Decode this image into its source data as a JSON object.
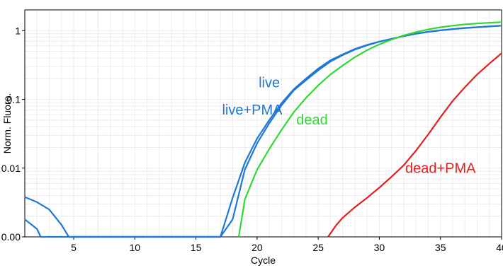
{
  "chart_data": {
    "type": "line",
    "title": "",
    "xlabel": "Cycle",
    "ylabel": "Norm. Fluoro.",
    "xlim": [
      1,
      40
    ],
    "ylim": [
      0.001,
      2
    ],
    "yscale": "log",
    "grid": true,
    "x_ticks": [
      5,
      10,
      15,
      20,
      25,
      30,
      35,
      40
    ],
    "y_ticks": [
      {
        "value": 0.001,
        "label": "0.00"
      },
      {
        "value": 0.01,
        "label": "0.01"
      },
      {
        "value": 0.1,
        "label": "0.1"
      },
      {
        "value": 1,
        "label": "1"
      }
    ],
    "series": [
      {
        "name": "live",
        "color": "#1f78d1",
        "points": [
          [
            1,
            0.0018
          ],
          [
            2,
            0.0013
          ],
          [
            2.3,
            0.001
          ],
          [
            17,
            0.001
          ],
          [
            18,
            0.0037
          ],
          [
            19,
            0.012
          ],
          [
            20,
            0.027
          ],
          [
            21,
            0.05
          ],
          [
            22,
            0.088
          ],
          [
            23,
            0.14
          ],
          [
            24,
            0.2
          ],
          [
            25,
            0.28
          ],
          [
            26,
            0.37
          ],
          [
            27,
            0.45
          ],
          [
            28,
            0.54
          ],
          [
            29,
            0.62
          ],
          [
            30,
            0.69
          ],
          [
            31,
            0.76
          ],
          [
            32,
            0.83
          ],
          [
            33,
            0.9
          ],
          [
            34,
            0.96
          ],
          [
            35,
            1.01
          ],
          [
            36,
            1.05
          ],
          [
            37,
            1.09
          ],
          [
            38,
            1.12
          ],
          [
            39,
            1.15
          ],
          [
            40,
            1.18
          ]
        ]
      },
      {
        "name": "live+PMA",
        "color": "#1f78d1",
        "points": [
          [
            1,
            0.0038
          ],
          [
            2,
            0.0032
          ],
          [
            3,
            0.0025
          ],
          [
            4,
            0.0015
          ],
          [
            4.6,
            0.001
          ],
          [
            17,
            0.001
          ],
          [
            18,
            0.0018
          ],
          [
            19,
            0.0095
          ],
          [
            20,
            0.023
          ],
          [
            21,
            0.045
          ],
          [
            22,
            0.082
          ],
          [
            23,
            0.135
          ],
          [
            24,
            0.19
          ],
          [
            25,
            0.265
          ],
          [
            26,
            0.355
          ],
          [
            27,
            0.44
          ],
          [
            28,
            0.53
          ],
          [
            29,
            0.61
          ],
          [
            30,
            0.69
          ],
          [
            31,
            0.76
          ],
          [
            32,
            0.83
          ],
          [
            33,
            0.9
          ],
          [
            34,
            0.96
          ],
          [
            35,
            1.01
          ],
          [
            36,
            1.05
          ],
          [
            37,
            1.09
          ],
          [
            38,
            1.12
          ],
          [
            39,
            1.15
          ],
          [
            40,
            1.18
          ]
        ]
      },
      {
        "name": "dead",
        "color": "#33d633",
        "points": [
          [
            18.5,
            0.001
          ],
          [
            19,
            0.0035
          ],
          [
            20,
            0.0095
          ],
          [
            21,
            0.019
          ],
          [
            22,
            0.036
          ],
          [
            23,
            0.065
          ],
          [
            24,
            0.105
          ],
          [
            25,
            0.16
          ],
          [
            26,
            0.23
          ],
          [
            27,
            0.31
          ],
          [
            28,
            0.41
          ],
          [
            29,
            0.52
          ],
          [
            30,
            0.63
          ],
          [
            31,
            0.74
          ],
          [
            32,
            0.85
          ],
          [
            33,
            0.95
          ],
          [
            34,
            1.04
          ],
          [
            35,
            1.12
          ],
          [
            36,
            1.18
          ],
          [
            37,
            1.23
          ],
          [
            38,
            1.27
          ],
          [
            39,
            1.3
          ],
          [
            40,
            1.33
          ]
        ]
      },
      {
        "name": "dead+PMA",
        "color": "#e02020",
        "points": [
          [
            25.8,
            0.001
          ],
          [
            26.5,
            0.0015
          ],
          [
            27,
            0.0019
          ],
          [
            28,
            0.0027
          ],
          [
            29,
            0.0037
          ],
          [
            30,
            0.0052
          ],
          [
            31,
            0.0075
          ],
          [
            32,
            0.011
          ],
          [
            33,
            0.018
          ],
          [
            34,
            0.031
          ],
          [
            35,
            0.055
          ],
          [
            36,
            0.095
          ],
          [
            37,
            0.15
          ],
          [
            38,
            0.23
          ],
          [
            39,
            0.33
          ],
          [
            40,
            0.47
          ]
        ]
      }
    ],
    "labels": [
      {
        "text": "live",
        "color": "#1f78d1",
        "x": 21,
        "y": 0.15
      },
      {
        "text": "live+PMA",
        "color": "#1f78d1",
        "x": 19.6,
        "y": 0.06
      },
      {
        "text": "dead",
        "color": "#33d633",
        "x": 24.5,
        "y": 0.043
      },
      {
        "text": "dead+PMA",
        "color": "#e02020",
        "x": 35,
        "y": 0.0085
      }
    ]
  }
}
